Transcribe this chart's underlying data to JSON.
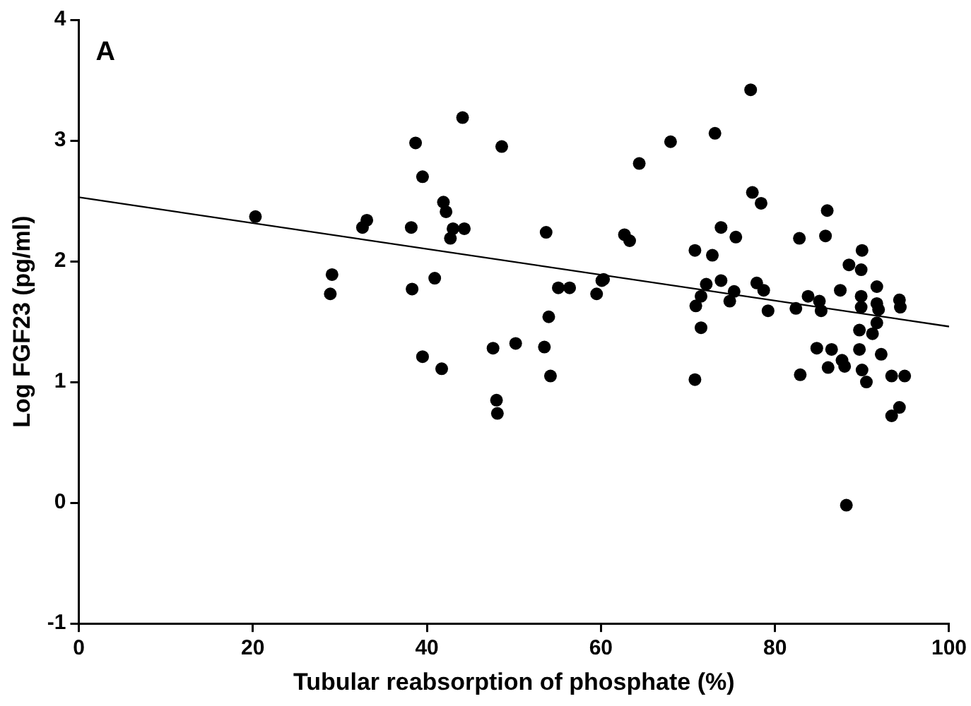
{
  "chart_data": {
    "type": "scatter",
    "xlabel": "Tubular reabsorption of phosphate (%)",
    "ylabel": "Log FGF23 (pg/ml)",
    "annotations": [
      "A"
    ],
    "xlim": [
      0,
      100
    ],
    "xticks": [
      0,
      20,
      40,
      60,
      80,
      100
    ],
    "ylim": [
      -1,
      4
    ],
    "yticks": [
      -1,
      0,
      1,
      2,
      3,
      4
    ],
    "grid": false,
    "legend": false,
    "series": [
      {
        "type": "scatter",
        "marker": "circle",
        "color": "#000000",
        "x": [
          20.3,
          29.1,
          28.9,
          33.1,
          32.6,
          38.7,
          39.5,
          41.9,
          42.2,
          38.2,
          43.0,
          44.3,
          42.7,
          44.1,
          48.6,
          64.4,
          68.0,
          53.7,
          62.7,
          63.3,
          70.8,
          55.1,
          56.4,
          60.3,
          59.5,
          60.1,
          38.3,
          40.9,
          39.5,
          41.7,
          54.0,
          47.6,
          50.2,
          53.5,
          54.2,
          70.8,
          48.0,
          48.1,
          73.1,
          77.2,
          77.4,
          78.4,
          73.8,
          75.5,
          72.8,
          72.1,
          73.8,
          71.5,
          70.9,
          71.5,
          75.3,
          74.8,
          77.9,
          78.7,
          79.2,
          82.8,
          82.4,
          83.8,
          82.9,
          84.8,
          85.1,
          85.3,
          86.0,
          85.8,
          87.5,
          86.5,
          86.1,
          87.7,
          88.0,
          88.2,
          88.5,
          89.9,
          90.0,
          89.9,
          89.9,
          89.7,
          89.7,
          90.0,
          90.5,
          91.7,
          91.7,
          91.9,
          91.7,
          91.2,
          92.2,
          94.3,
          94.4,
          93.4,
          94.9,
          94.3,
          93.4
        ],
        "values": [
          2.37,
          1.89,
          1.73,
          2.34,
          2.28,
          2.98,
          2.7,
          2.49,
          2.41,
          2.28,
          2.27,
          2.27,
          2.19,
          3.19,
          2.95,
          2.81,
          2.99,
          2.24,
          2.22,
          2.17,
          2.09,
          1.78,
          1.78,
          1.85,
          1.73,
          1.84,
          1.77,
          1.86,
          1.21,
          1.11,
          1.54,
          1.28,
          1.32,
          1.29,
          1.05,
          1.02,
          0.85,
          0.74,
          3.06,
          3.42,
          2.57,
          2.48,
          2.28,
          2.2,
          2.05,
          1.81,
          1.84,
          1.71,
          1.63,
          1.45,
          1.75,
          1.67,
          1.82,
          1.76,
          1.59,
          2.19,
          1.61,
          1.71,
          1.06,
          1.28,
          1.67,
          1.59,
          2.42,
          2.21,
          1.76,
          1.27,
          1.12,
          1.18,
          1.13,
          -0.02,
          1.97,
          1.93,
          2.09,
          1.71,
          1.62,
          1.43,
          1.27,
          1.1,
          1.0,
          1.79,
          1.65,
          1.6,
          1.49,
          1.4,
          1.23,
          1.68,
          1.62,
          1.05,
          1.05,
          0.79,
          0.72
        ]
      },
      {
        "type": "line",
        "marker": "none",
        "line_style": "solid",
        "color": "#000000",
        "x": [
          0,
          100
        ],
        "values": [
          2.53,
          1.46
        ]
      }
    ]
  }
}
